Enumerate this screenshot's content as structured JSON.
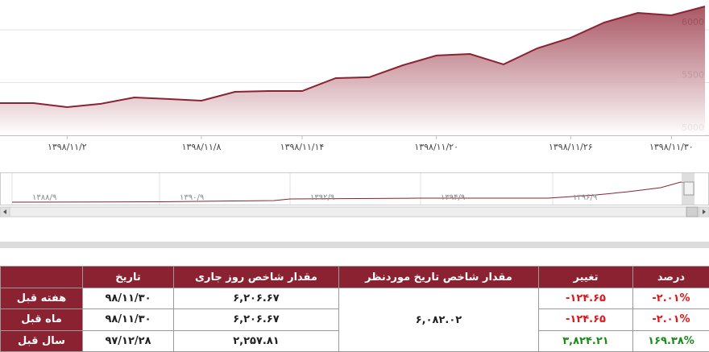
{
  "chart_data": {
    "type": "area",
    "categories": [
      null,
      null,
      "۱۳۹۸/۱۱/۲",
      null,
      null,
      null,
      "۱۳۹۸/۱۱/۸",
      null,
      null,
      "۱۳۹۸/۱۱/۱۴",
      null,
      null,
      null,
      "۱۳۹۸/۱۱/۲۰",
      null,
      null,
      null,
      "۱۳۹۸/۱۱/۲۶",
      null,
      null,
      "۱۳۹۸/۱۱/۳۰",
      null
    ],
    "values": [
      5305,
      5305,
      5267,
      5298,
      5359,
      5344,
      5328,
      5412,
      5420,
      5420,
      5542,
      5550,
      5664,
      5756,
      5771,
      5672,
      5824,
      5924,
      6069,
      6160,
      6137,
      6221
    ],
    "color": "#8b2232",
    "ylim": [
      5000,
      6282
    ],
    "yticks": [
      5000,
      5500,
      6000
    ],
    "grid": true
  },
  "navigator": {
    "labels": [
      "۱۳۸۸/۹",
      "۱۳۹۰/۹",
      "۱۳۹۲/۹",
      "۱۳۹۴/۹",
      "۱۳۹۶/۹"
    ]
  },
  "table": {
    "headers": [
      "تاریخ",
      "مقدار شاخص روز جاری",
      "مقدار شاخص تاریخ موردنظر",
      "تغییر",
      "درصد"
    ],
    "target_value": "۶,۰۸۲.۰۲",
    "rows": [
      {
        "label": "هفته قبل",
        "date": "۹۸/۱۱/۳۰",
        "current": "۶,۲۰۶.۶۷",
        "change": "-۱۲۴.۶۵",
        "percent": "-۲.۰۱%",
        "color": "#e0161b"
      },
      {
        "label": "ماه قبل",
        "date": "۹۸/۱۱/۳۰",
        "current": "۶,۲۰۶.۶۷",
        "change": "-۱۲۴.۶۵",
        "percent": "-۲.۰۱%",
        "color": "#e0161b"
      },
      {
        "label": "سال قبل",
        "date": "۹۷/۱۲/۲۸",
        "current": "۲,۲۵۷.۸۱",
        "change": "۳,۸۲۴.۲۱",
        "percent": "۱۶۹.۳۸%",
        "color": "#1a8a1a"
      }
    ]
  }
}
